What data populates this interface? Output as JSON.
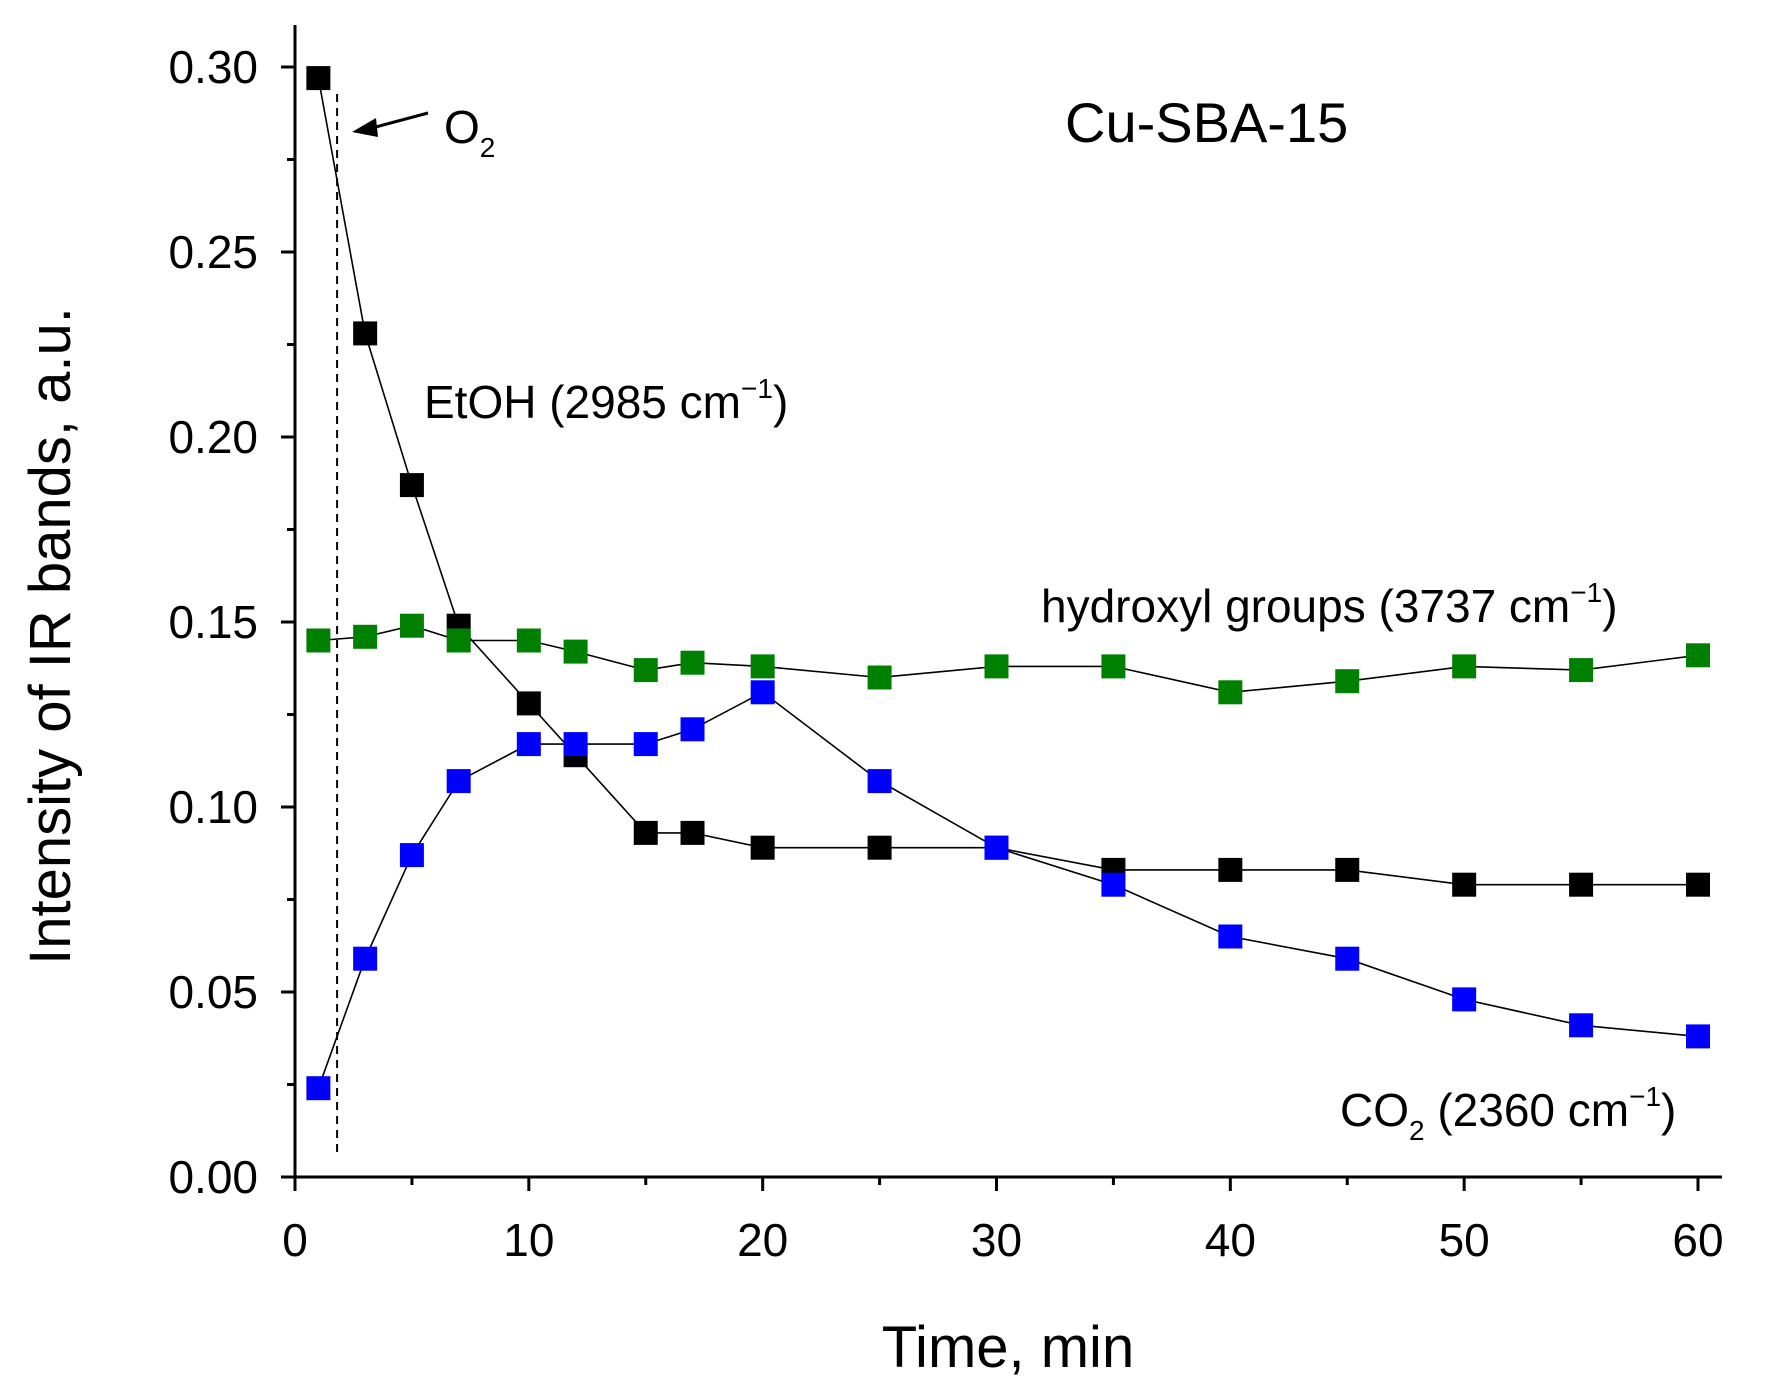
{
  "chart_data": {
    "type": "line",
    "title": "Cu-SBA-15",
    "xlabel": "Time, min",
    "ylabel": "Intensity of IR bands, a.u.",
    "xlim": [
      0,
      61
    ],
    "ylim": [
      0,
      0.31
    ],
    "xticks": [
      "0",
      "10",
      "20",
      "30",
      "40",
      "50",
      "60"
    ],
    "yticks": [
      "0.00",
      "0.05",
      "0.10",
      "0.15",
      "0.20",
      "0.25",
      "0.30"
    ],
    "grid": false,
    "marker_event": {
      "label": "O",
      "subscript": "2",
      "x": 1.8
    },
    "series": [
      {
        "name": "EtOH",
        "label_main": "EtOH (2985 cm",
        "label_sup": "−1",
        "label_tail": ")",
        "color": "#000000",
        "x": [
          1,
          3,
          5,
          7,
          10,
          12,
          15,
          17,
          20,
          25,
          30,
          35,
          40,
          45,
          50,
          55,
          60
        ],
        "y": [
          0.297,
          0.228,
          0.187,
          0.149,
          0.128,
          0.114,
          0.093,
          0.093,
          0.089,
          0.089,
          0.089,
          0.083,
          0.083,
          0.083,
          0.079,
          0.079,
          0.079
        ]
      },
      {
        "name": "hydroxyl groups",
        "label_main": "hydroxyl groups (3737 cm",
        "label_sup": "−1",
        "label_tail": ")",
        "color": "#008000",
        "x": [
          1,
          3,
          5,
          7,
          10,
          12,
          15,
          17,
          20,
          25,
          30,
          35,
          40,
          45,
          50,
          55,
          60
        ],
        "y": [
          0.145,
          0.146,
          0.149,
          0.145,
          0.145,
          0.142,
          0.137,
          0.139,
          0.138,
          0.135,
          0.138,
          0.138,
          0.131,
          0.134,
          0.138,
          0.137,
          0.141
        ]
      },
      {
        "name": "CO2",
        "label_main": "CO",
        "label_sub": "2",
        "label_tail": " (2360 cm",
        "label_sup": "−1",
        "label_end": ")",
        "color": "#0000ff",
        "x": [
          1,
          3,
          5,
          7,
          10,
          12,
          15,
          17,
          20,
          25,
          30,
          35,
          40,
          45,
          50,
          55,
          60
        ],
        "y": [
          0.024,
          0.059,
          0.087,
          0.107,
          0.117,
          0.117,
          0.117,
          0.121,
          0.131,
          0.107,
          0.089,
          0.079,
          0.065,
          0.059,
          0.048,
          0.041,
          0.038
        ]
      }
    ]
  }
}
